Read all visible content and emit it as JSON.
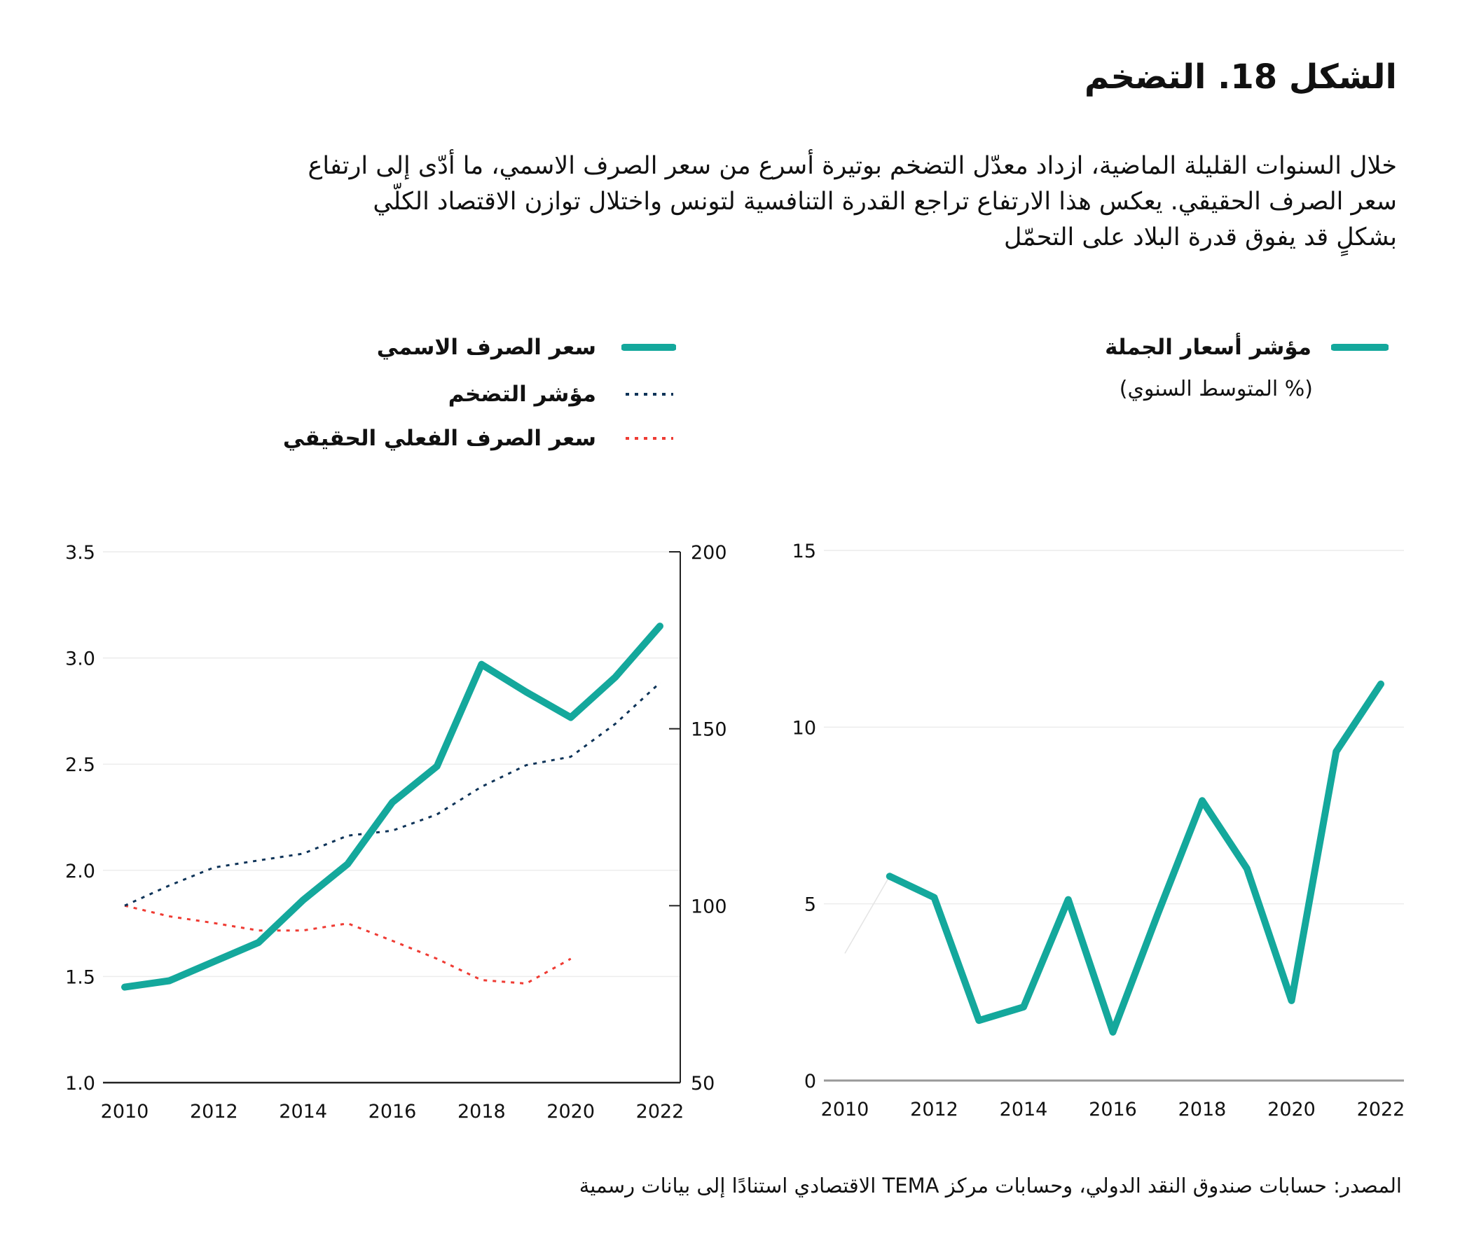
{
  "title": "الشكل 18. التضخم",
  "description": [
    "خلال السنوات القليلة الماضية، ازداد معدّل التضخم بوتيرة أسرع من سعر الصرف الاسمي، ما أدّى إلى ارتفاع",
    "سعر الصرف الحقيقي. يعكس هذا الارتفاع تراجع القدرة التنافسية لتونس واختلال توازن الاقتصاد الكلّي",
    "بشكلٍ قد يفوق قدرة البلاد على التحمّل"
  ],
  "source": "المصدر: حسابات صندوق النقد الدولي، وحسابات مركز TEMA الاقتصادي استنادًا إلى بيانات رسمية",
  "colors": {
    "teal": "#14a89c",
    "navy": "#0d3358",
    "red": "#ef3b33",
    "grid": "#ececec",
    "axis": "#222222"
  },
  "chart_data": [
    {
      "type": "line",
      "legend": [
        {
          "label": "سعر الصرف الاسمي",
          "style": "solid",
          "color": "#14a89c"
        },
        {
          "label": "مؤشر التضخم",
          "style": "dotted",
          "color": "#0d3358"
        },
        {
          "label": "سعر الصرف الفعلي الحقيقي",
          "style": "dotted",
          "color": "#ef3b33"
        }
      ],
      "x": [
        2010,
        2011,
        2012,
        2013,
        2014,
        2015,
        2016,
        2017,
        2018,
        2019,
        2020,
        2021,
        2022
      ],
      "x_ticks": [
        "2010",
        "2012",
        "2014",
        "2016",
        "2018",
        "2020",
        "2022"
      ],
      "y_left": {
        "range": [
          1.0,
          3.5
        ],
        "ticks": [
          "1.0",
          "1.5",
          "2.0",
          "2.5",
          "3.0",
          "3.5"
        ]
      },
      "y_right": {
        "range": [
          50,
          200
        ],
        "ticks": [
          "50",
          "100",
          "150",
          "200"
        ]
      },
      "grid": true,
      "series": [
        {
          "name": "سعر الصرف الاسمي",
          "axis": "left",
          "color": "#14a89c",
          "style": "solid",
          "values": [
            1.45,
            1.48,
            1.57,
            1.66,
            1.86,
            2.03,
            2.32,
            2.49,
            2.97,
            2.84,
            2.72,
            2.91,
            3.15
          ]
        },
        {
          "name": "مؤشر التضخم",
          "axis": "right",
          "color": "#0d3358",
          "style": "dotted",
          "values": [
            100,
            105.7,
            110.8,
            112.8,
            114.7,
            119.8,
            121.2,
            125.8,
            133.6,
            139.7,
            142.1,
            151.4,
            163
          ]
        },
        {
          "name": "سعر الصرف الفعلي الحقيقي",
          "axis": "right",
          "color": "#ef3b33",
          "style": "dotted",
          "values": [
            100,
            97,
            95.1,
            93,
            93,
            95,
            90.1,
            85,
            79,
            78,
            85,
            null,
            null
          ]
        }
      ]
    },
    {
      "type": "line",
      "legend": [
        {
          "label": "مؤشر أسعار الجملة",
          "style": "solid",
          "color": "#14a89c"
        }
      ],
      "subtitle": "(% المتوسط السنوي)",
      "x": [
        2010,
        2011,
        2012,
        2013,
        2014,
        2015,
        2016,
        2017,
        2018,
        2019,
        2020,
        2021,
        2022
      ],
      "x_ticks": [
        "2010",
        "2012",
        "2014",
        "2016",
        "2018",
        "2020",
        "2022"
      ],
      "y": {
        "range": [
          0,
          15
        ],
        "ticks": [
          "0",
          "5",
          "10",
          "15"
        ]
      },
      "grid": true,
      "series": [
        {
          "name": "مؤشر أسعار الجملة",
          "color": "#14a89c",
          "style": "solid",
          "values": [
            3.6,
            5.78,
            5.18,
            1.7,
            2.08,
            5.12,
            1.37,
            4.7,
            7.92,
            6.0,
            2.26,
            9.31,
            11.22
          ]
        }
      ]
    }
  ]
}
